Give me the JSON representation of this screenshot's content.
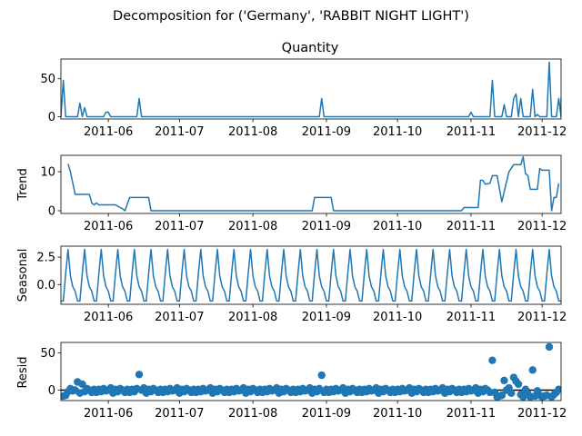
{
  "figure": {
    "suptitle": "Decomposition for ('Germany', 'RABBIT NIGHT LIGHT')",
    "line_color": "#1f77b4",
    "date_ticks": [
      "2011-06",
      "2011-07",
      "2011-08",
      "2011-09",
      "2011-10",
      "2011-11",
      "2011-12"
    ]
  },
  "chart_data": [
    {
      "type": "line",
      "title": "Quantity",
      "ylabel": "",
      "xlim": [
        "2011-05-12",
        "2011-12-09"
      ],
      "ylim": [
        -3,
        76
      ],
      "yticks": [
        0,
        50
      ],
      "points": [
        [
          "2011-05-12",
          0
        ],
        [
          "2011-05-13",
          48
        ],
        [
          "2011-05-14",
          0
        ],
        [
          "2011-05-19",
          0
        ],
        [
          "2011-05-20",
          18
        ],
        [
          "2011-05-21",
          0
        ],
        [
          "2011-05-22",
          12
        ],
        [
          "2011-05-23",
          0
        ],
        [
          "2011-05-30",
          0
        ],
        [
          "2011-05-31",
          6
        ],
        [
          "2011-06-01",
          6
        ],
        [
          "2011-06-02",
          0
        ],
        [
          "2011-06-13",
          0
        ],
        [
          "2011-06-14",
          24
        ],
        [
          "2011-06-15",
          0
        ],
        [
          "2011-08-29",
          0
        ],
        [
          "2011-08-30",
          24
        ],
        [
          "2011-08-31",
          0
        ],
        [
          "2011-10-31",
          0
        ],
        [
          "2011-11-01",
          6
        ],
        [
          "2011-11-02",
          0
        ],
        [
          "2011-11-09",
          0
        ],
        [
          "2011-11-10",
          48
        ],
        [
          "2011-11-11",
          0
        ],
        [
          "2011-11-14",
          0
        ],
        [
          "2011-11-15",
          16
        ],
        [
          "2011-11-16",
          0
        ],
        [
          "2011-11-18",
          0
        ],
        [
          "2011-11-19",
          24
        ],
        [
          "2011-11-20",
          30
        ],
        [
          "2011-11-21",
          0
        ],
        [
          "2011-11-22",
          24
        ],
        [
          "2011-11-23",
          0
        ],
        [
          "2011-11-26",
          0
        ],
        [
          "2011-11-27",
          36
        ],
        [
          "2011-11-28",
          0
        ],
        [
          "2011-11-29",
          3
        ],
        [
          "2011-11-30",
          0
        ],
        [
          "2011-12-03",
          0
        ],
        [
          "2011-12-04",
          72
        ],
        [
          "2011-12-05",
          0
        ],
        [
          "2011-12-07",
          0
        ],
        [
          "2011-12-08",
          24
        ],
        [
          "2011-12-09",
          0
        ],
        [
          "2011-12-09",
          24
        ]
      ]
    },
    {
      "type": "line",
      "title": "",
      "ylabel": "Trend",
      "xlim": [
        "2011-05-12",
        "2011-12-09"
      ],
      "ylim": [
        -0.7,
        14.2
      ],
      "yticks": [
        0,
        10
      ],
      "points": [
        [
          "2011-05-15",
          12
        ],
        [
          "2011-05-16",
          10
        ],
        [
          "2011-05-18",
          4.2
        ],
        [
          "2011-05-24",
          4.2
        ],
        [
          "2011-05-25",
          2
        ],
        [
          "2011-05-26",
          1.5
        ],
        [
          "2011-05-27",
          2
        ],
        [
          "2011-05-28",
          1.5
        ],
        [
          "2011-06-04",
          1.5
        ],
        [
          "2011-06-07",
          0.5
        ],
        [
          "2011-06-08",
          0
        ],
        [
          "2011-06-10",
          3.4
        ],
        [
          "2011-06-18",
          3.4
        ],
        [
          "2011-06-19",
          0
        ],
        [
          "2011-08-26",
          0
        ],
        [
          "2011-08-27",
          3.4
        ],
        [
          "2011-09-03",
          3.4
        ],
        [
          "2011-09-04",
          0
        ],
        [
          "2011-10-28",
          0
        ],
        [
          "2011-10-29",
          0.8
        ],
        [
          "2011-11-04",
          0.8
        ],
        [
          "2011-11-05",
          7.8
        ],
        [
          "2011-11-06",
          7.8
        ],
        [
          "2011-11-07",
          6.8
        ],
        [
          "2011-11-09",
          7
        ],
        [
          "2011-11-10",
          9
        ],
        [
          "2011-11-12",
          9
        ],
        [
          "2011-11-14",
          2.3
        ],
        [
          "2011-11-17",
          10
        ],
        [
          "2011-11-19",
          11.8
        ],
        [
          "2011-11-22",
          11.8
        ],
        [
          "2011-11-23",
          13.8
        ],
        [
          "2011-11-24",
          9.5
        ],
        [
          "2011-11-25",
          9
        ],
        [
          "2011-11-26",
          5.5
        ],
        [
          "2011-11-29",
          5.5
        ],
        [
          "2011-11-30",
          10.8
        ],
        [
          "2011-12-01",
          10.4
        ],
        [
          "2011-12-04",
          10.4
        ],
        [
          "2011-12-05",
          0
        ],
        [
          "2011-12-06",
          3.4
        ],
        [
          "2011-12-07",
          3.4
        ],
        [
          "2011-12-08",
          7
        ]
      ]
    },
    {
      "type": "line",
      "title": "",
      "ylabel": "Seasonal",
      "xlim": [
        "2011-05-12",
        "2011-12-09"
      ],
      "ylim": [
        -1.8,
        3.5
      ],
      "yticks": [
        0.0,
        2.5
      ],
      "tick_labels": [
        "0.0",
        "2.5"
      ],
      "seasonal": {
        "start": "2011-05-12",
        "end": "2011-12-09",
        "period_days": 7,
        "pattern": [
          -1.5,
          -1.5,
          1.0,
          3.2,
          0.8,
          -0.2,
          -0.6
        ]
      }
    },
    {
      "type": "scatter",
      "title": "",
      "ylabel": "Resid",
      "xlim": [
        "2011-05-12",
        "2011-12-09"
      ],
      "ylim": [
        -14,
        64
      ],
      "yticks": [
        0,
        50
      ],
      "zero_line": true,
      "marker_color": "#1f77b4",
      "outliers": [
        [
          "2011-05-19",
          11
        ],
        [
          "2011-05-21",
          8
        ],
        [
          "2011-06-14",
          21
        ],
        [
          "2011-08-30",
          20
        ],
        [
          "2011-11-10",
          40
        ],
        [
          "2011-11-15",
          13
        ],
        [
          "2011-11-19",
          17
        ],
        [
          "2011-11-20",
          12
        ],
        [
          "2011-11-21",
          8
        ],
        [
          "2011-11-27",
          27
        ],
        [
          "2011-12-04",
          58
        ]
      ],
      "base": {
        "start": "2011-05-13",
        "end": "2011-12-08",
        "pattern": [
          -3,
          1,
          -2,
          2,
          -1,
          0,
          3,
          -4,
          1,
          -2,
          2,
          0,
          -3,
          1
        ]
      },
      "late_negatives": [
        [
          "2011-11-12",
          -9
        ],
        [
          "2011-11-13",
          -8
        ],
        [
          "2011-11-14",
          -7
        ],
        [
          "2011-11-22",
          -6
        ],
        [
          "2011-11-23",
          -9
        ],
        [
          "2011-11-25",
          -5
        ],
        [
          "2011-11-26",
          -9
        ],
        [
          "2011-11-28",
          -8
        ],
        [
          "2011-11-30",
          -7
        ],
        [
          "2011-12-01",
          -9
        ],
        [
          "2011-12-02",
          -8
        ],
        [
          "2011-12-03",
          -7
        ],
        [
          "2011-12-05",
          -9
        ],
        [
          "2011-12-06",
          -6
        ],
        [
          "2011-12-07",
          -3
        ],
        [
          "2011-05-13",
          -8
        ],
        [
          "2011-05-14",
          -7
        ]
      ]
    }
  ]
}
